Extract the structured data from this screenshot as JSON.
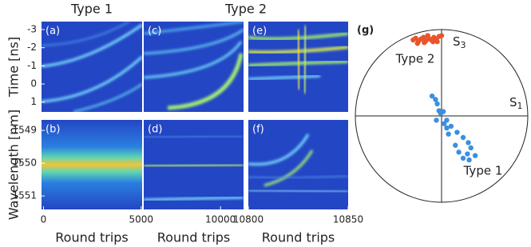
{
  "chart_data": [
    {
      "type": "heatmap",
      "title": "Type 1",
      "panel_label": "(a)",
      "y_label": "Time [ns]",
      "ylim": [
        -3.44,
        1.54
      ],
      "yticks": [
        -3,
        -2,
        -1,
        0,
        1
      ]
    },
    {
      "type": "heatmap",
      "panel_label": "(b)",
      "y_label": "Wavelength [nm]",
      "ylim": [
        1548.68,
        1551.41
      ],
      "yticks": [
        1549,
        1550,
        1551
      ],
      "xlim": [
        -100,
        5050
      ],
      "xticks": [
        0,
        5000
      ],
      "x_label": "Round trips"
    },
    {
      "type": "heatmap",
      "title": "Type 2",
      "panel_label": "(c)"
    },
    {
      "type": "heatmap",
      "panel_label": "(d)",
      "xlim": [
        0,
        13000
      ],
      "xticks": [
        10000
      ],
      "x_label": "Round trips"
    },
    {
      "type": "heatmap",
      "panel_label": "(e)"
    },
    {
      "type": "heatmap",
      "panel_label": "(f)",
      "xlim": [
        10800,
        10850
      ],
      "xticks": [
        10800,
        10850
      ],
      "x_label": "Round trips"
    },
    {
      "type": "scatter",
      "panel_label": "(g)",
      "x_axis": {
        "base": "S",
        "sub": "1"
      },
      "y_axis": {
        "base": "S",
        "sub": "3"
      },
      "xlim": [
        -1,
        1
      ],
      "ylim": [
        -1,
        1
      ],
      "series": [
        {
          "name": "Type 2",
          "color": "#e8552a",
          "x": [
            -0.33,
            -0.3,
            -0.27,
            -0.24,
            -0.21,
            -0.18,
            -0.15,
            -0.12,
            -0.09,
            -0.06,
            -0.03,
            -0.28,
            -0.2,
            -0.1,
            -0.16,
            -0.05,
            0.0
          ],
          "values": [
            0.88,
            0.9,
            0.86,
            0.89,
            0.91,
            0.87,
            0.9,
            0.88,
            0.91,
            0.89,
            0.92,
            0.84,
            0.85,
            0.86,
            0.93,
            0.86,
            0.93
          ]
        },
        {
          "name": "Type 1",
          "color": "#3b8fe0",
          "x": [
            -0.11,
            -0.07,
            -0.05,
            -0.03,
            0.02,
            0.06,
            0.11,
            0.18,
            0.25,
            0.31,
            0.34,
            0.3,
            0.25,
            0.2,
            0.16,
            0.08,
            0.03,
            -0.01,
            -0.06,
            0.06,
            0.39,
            0.32
          ],
          "values": [
            0.23,
            0.19,
            0.14,
            0.06,
            0.05,
            -0.05,
            -0.12,
            -0.19,
            -0.25,
            -0.31,
            -0.37,
            -0.44,
            -0.49,
            -0.42,
            -0.34,
            -0.21,
            -0.09,
            0.03,
            -0.05,
            -0.14,
            -0.46,
            -0.51
          ]
        }
      ]
    }
  ]
}
